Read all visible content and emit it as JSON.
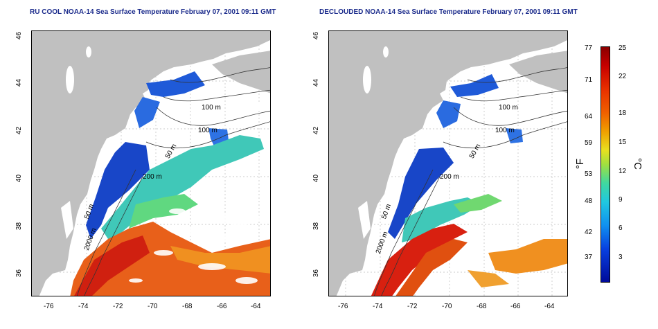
{
  "left_panel": {
    "title": "RU COOL NOAA-14 Sea Surface Temperature February 07, 2001 09:11 GMT",
    "contour_labels": [
      "100 m",
      "100 m",
      "50 m",
      "200 m",
      "50 m",
      "2000 m"
    ]
  },
  "right_panel": {
    "title": "DECLOUDED NOAA-14 Sea Surface Temperature February 07, 2001 09:11 GMT",
    "contour_labels": [
      "100 m",
      "100 m",
      "50 m",
      "200 m",
      "50 m",
      "2000 m"
    ]
  },
  "axes": {
    "x_ticks": [
      "-76",
      "-74",
      "-72",
      "-70",
      "-68",
      "-66",
      "-64"
    ],
    "y_ticks": [
      "46",
      "44",
      "42",
      "40",
      "38",
      "36"
    ]
  },
  "colorbar": {
    "fahrenheit_ticks": [
      "77",
      "71",
      "64",
      "59",
      "53",
      "48",
      "42",
      "37"
    ],
    "celsius_ticks": [
      "25",
      "22",
      "18",
      "15",
      "12",
      "9",
      "6",
      "3"
    ],
    "fahrenheit_unit": "°F",
    "celsius_unit": "°C"
  },
  "colors": {
    "land": "#c0c0c0",
    "cloud": "#ffffff",
    "title": "#1c2c8c"
  }
}
